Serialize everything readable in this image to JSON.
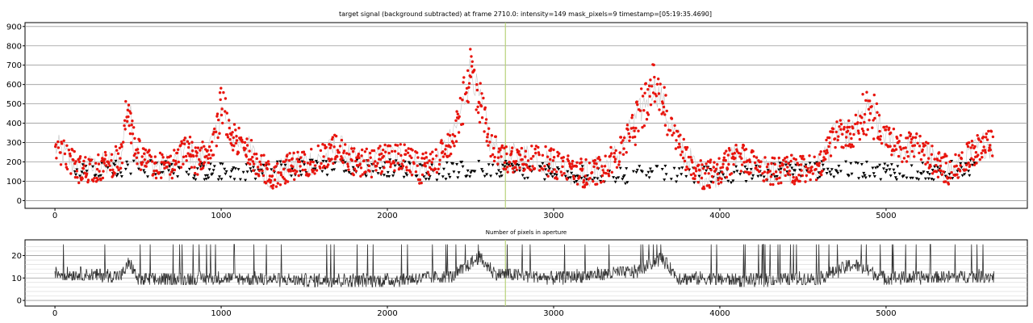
{
  "chart_data": [
    {
      "type": "scatter",
      "title": "target signal (background subtracted) at frame 2710.0: intensity=149 mask_pixels=9 timestamp=[05:19:35.4690]",
      "xlim": [
        -180,
        5850
      ],
      "ylim": [
        -40,
        920
      ],
      "x_ticks": [
        0,
        1000,
        2000,
        3000,
        4000,
        5000
      ],
      "y_ticks": [
        0,
        100,
        200,
        300,
        400,
        500,
        600,
        700,
        800,
        900
      ],
      "grid": "horizontal",
      "current_frame": 2710,
      "frame_count": 5650,
      "series": [
        {
          "marker": "circle",
          "color": "#e8150e",
          "segments": [
            [
              0,
              280
            ],
            [
              150,
              160
            ],
            [
              280,
              170
            ],
            [
              400,
              220
            ],
            [
              440,
              520
            ],
            [
              480,
              270
            ],
            [
              560,
              190
            ],
            [
              700,
              170
            ],
            [
              800,
              280
            ],
            [
              850,
              200
            ],
            [
              960,
              300
            ],
            [
              1000,
              480
            ],
            [
              1060,
              330
            ],
            [
              1150,
              280
            ],
            [
              1220,
              200
            ],
            [
              1300,
              120
            ],
            [
              1400,
              170
            ],
            [
              1500,
              200
            ],
            [
              1600,
              210
            ],
            [
              1700,
              280
            ],
            [
              1800,
              200
            ],
            [
              1900,
              190
            ],
            [
              2000,
              230
            ],
            [
              2100,
              220
            ],
            [
              2200,
              160
            ],
            [
              2300,
              210
            ],
            [
              2400,
              330
            ],
            [
              2480,
              580
            ],
            [
              2500,
              700
            ],
            [
              2560,
              500
            ],
            [
              2620,
              300
            ],
            [
              2700,
              210
            ],
            [
              2800,
              230
            ],
            [
              2900,
              220
            ],
            [
              3000,
              190
            ],
            [
              3100,
              160
            ],
            [
              3200,
              140
            ],
            [
              3300,
              170
            ],
            [
              3400,
              250
            ],
            [
              3500,
              420
            ],
            [
              3600,
              600
            ],
            [
              3650,
              520
            ],
            [
              3700,
              390
            ],
            [
              3800,
              220
            ],
            [
              3900,
              130
            ],
            [
              4000,
              150
            ],
            [
              4100,
              240
            ],
            [
              4200,
              190
            ],
            [
              4300,
              150
            ],
            [
              4400,
              160
            ],
            [
              4500,
              160
            ],
            [
              4600,
              170
            ],
            [
              4700,
              350
            ],
            [
              4750,
              340
            ],
            [
              4800,
              350
            ],
            [
              4850,
              420
            ],
            [
              4900,
              470
            ],
            [
              5000,
              320
            ],
            [
              5100,
              270
            ],
            [
              5200,
              290
            ],
            [
              5300,
              190
            ],
            [
              5400,
              150
            ],
            [
              5500,
              230
            ],
            [
              5600,
              300
            ],
            [
              5650,
              280
            ]
          ]
        },
        {
          "marker": "triangle",
          "color": "#000000",
          "segments": [
            [
              120,
              170
            ],
            [
              400,
              170
            ],
            [
              700,
              160
            ],
            [
              900,
              150
            ],
            [
              1200,
              150
            ],
            [
              1400,
              170
            ],
            [
              1700,
              170
            ],
            [
              2000,
              170
            ],
            [
              2300,
              150
            ],
            [
              2700,
              170
            ],
            [
              2900,
              150
            ],
            [
              3100,
              140
            ],
            [
              3300,
              130
            ],
            [
              3800,
              140
            ],
            [
              4000,
              130
            ],
            [
              4300,
              150
            ],
            [
              4600,
              160
            ],
            [
              5300,
              150
            ],
            [
              5500,
              170
            ]
          ]
        },
        {
          "marker": "line",
          "color": "#bbbbbb",
          "segments": [
            [
              0,
              250
            ],
            [
              1000,
              260
            ],
            [
              2000,
              220
            ],
            [
              2500,
              500
            ],
            [
              2700,
              210
            ],
            [
              3600,
              520
            ],
            [
              4000,
              150
            ],
            [
              4900,
              420
            ],
            [
              5650,
              270
            ]
          ]
        }
      ]
    },
    {
      "type": "line",
      "title": "Number of pixels in aperture",
      "xlim": [
        -180,
        5850
      ],
      "ylim": [
        -2.5,
        27
      ],
      "x_ticks": [
        0,
        1000,
        2000,
        3000,
        4000,
        5000
      ],
      "y_ticks": [
        0,
        10,
        20
      ],
      "grid": "horizontal",
      "current_frame": 2710,
      "series": [
        {
          "color": "#333333",
          "segments": [
            [
              0,
              12
            ],
            [
              400,
              11
            ],
            [
              450,
              17
            ],
            [
              500,
              9
            ],
            [
              1000,
              10
            ],
            [
              1500,
              9
            ],
            [
              2000,
              9
            ],
            [
              2400,
              11
            ],
            [
              2550,
              19
            ],
            [
              2650,
              12
            ],
            [
              3000,
              10
            ],
            [
              3500,
              13
            ],
            [
              3650,
              19
            ],
            [
              3750,
              10
            ],
            [
              4200,
              9
            ],
            [
              4600,
              10
            ],
            [
              4800,
              16
            ],
            [
              5000,
              10
            ],
            [
              5650,
              11
            ]
          ]
        }
      ]
    }
  ]
}
